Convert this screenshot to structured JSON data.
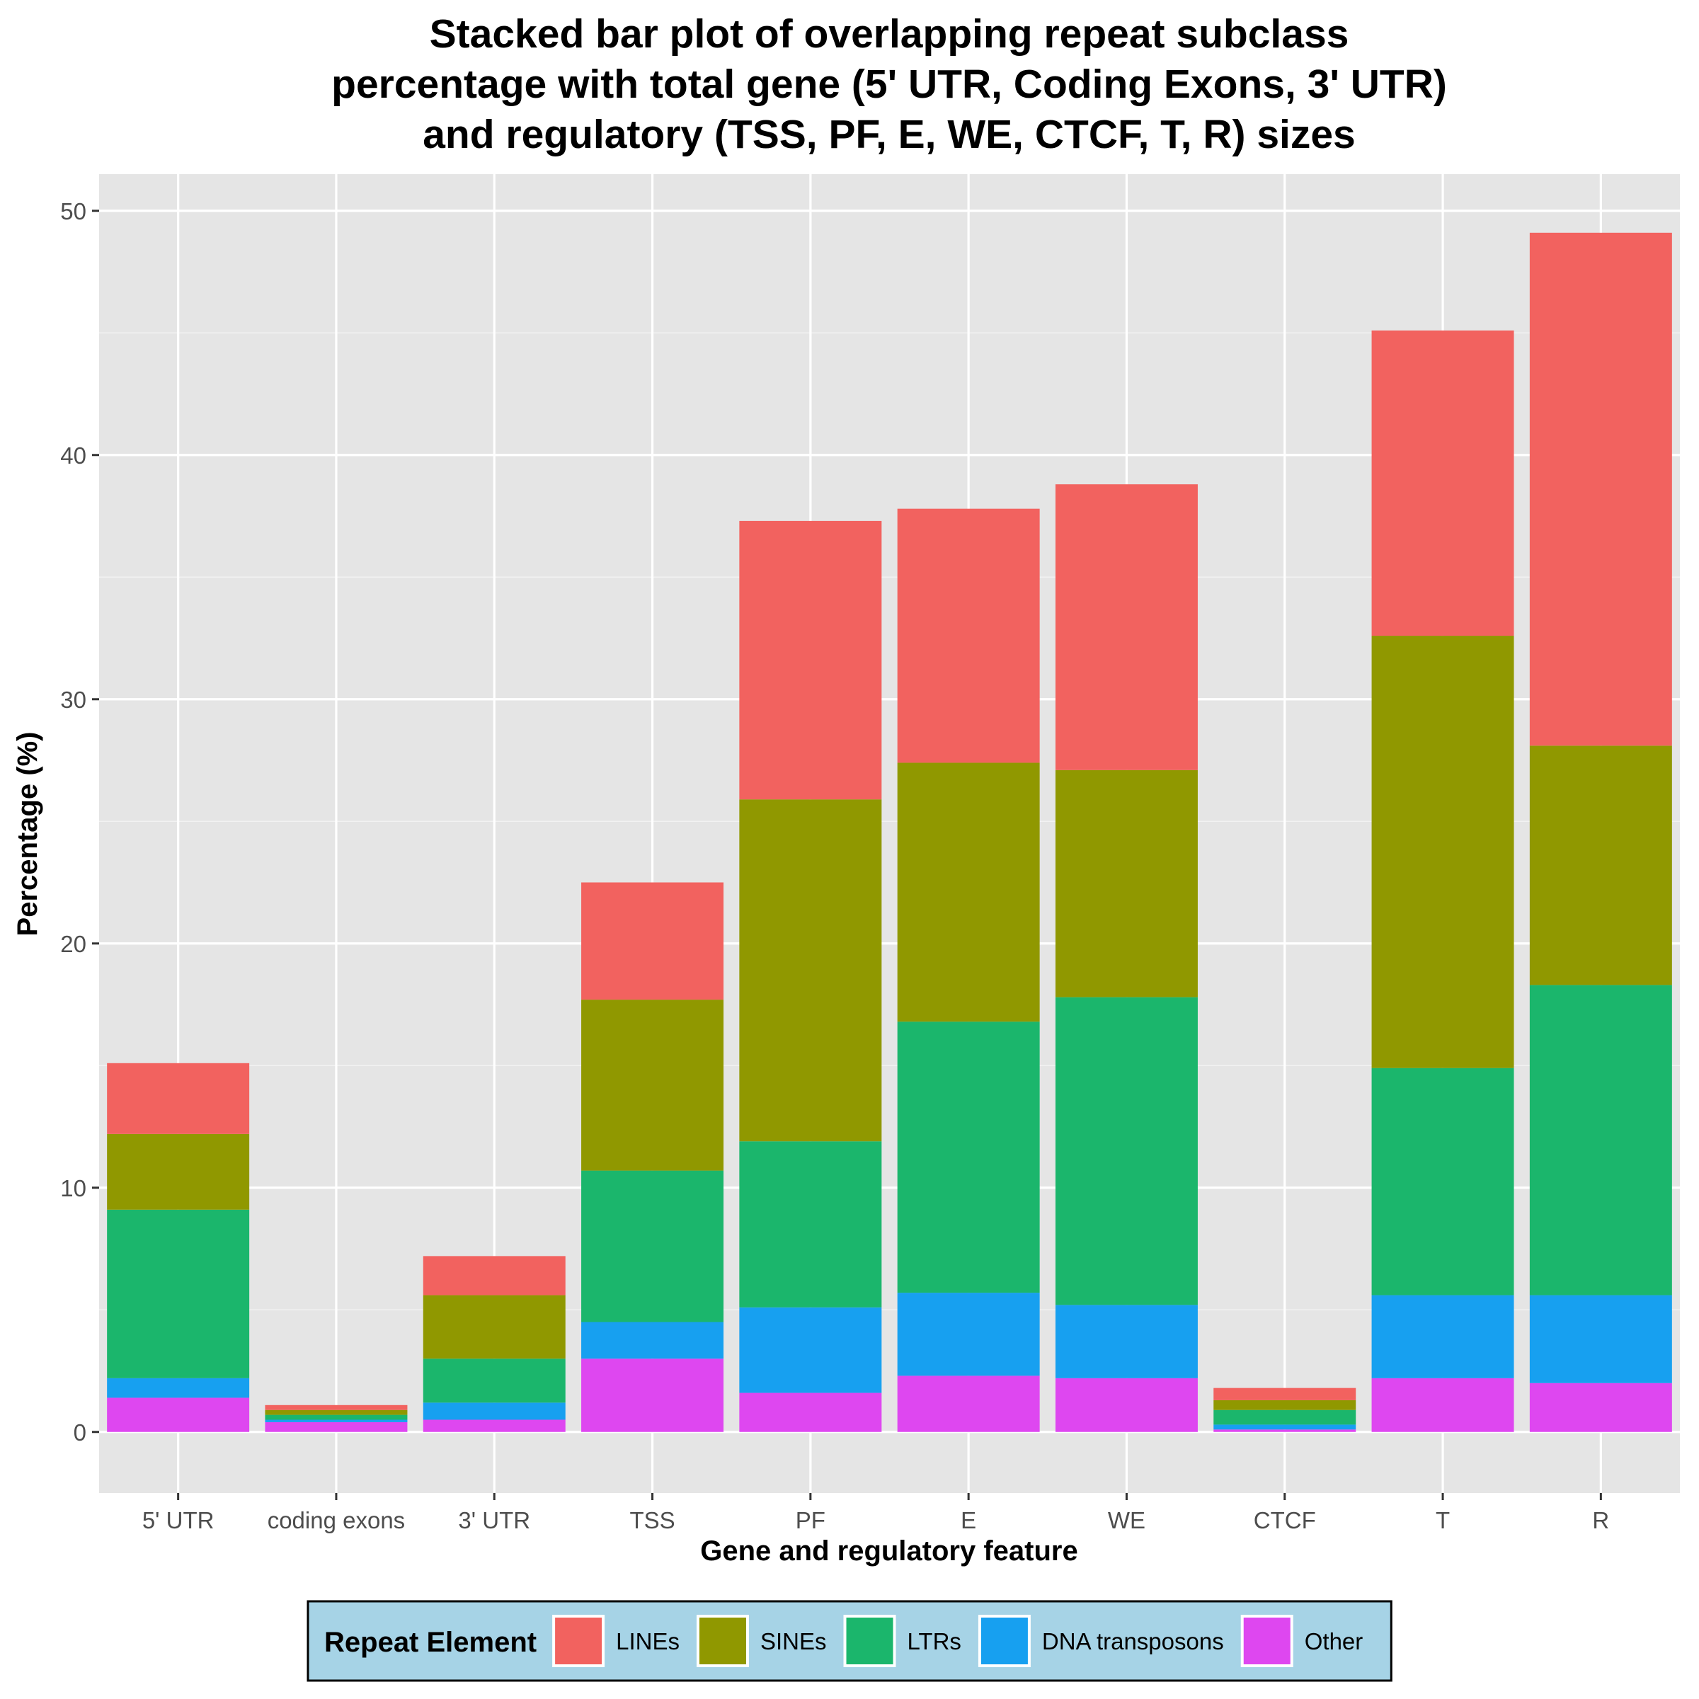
{
  "chart_data": {
    "type": "bar",
    "stacked": true,
    "title": [
      "Stacked bar plot of overlapping repeat subclass",
      "percentage with total gene (5' UTR, Coding Exons, 3' UTR)",
      "and regulatory (TSS, PF, E, WE, CTCF, T, R) sizes"
    ],
    "xlabel": "Gene and regulatory feature",
    "ylabel": "Percentage (%)",
    "ylim": [
      -2.5,
      51.5
    ],
    "yticks": [
      0,
      10,
      20,
      30,
      40,
      50
    ],
    "grid": true,
    "categories": [
      "5' UTR",
      "coding exons",
      "3' UTR",
      "TSS",
      "PF",
      "E",
      "WE",
      "CTCF",
      "T",
      "R"
    ],
    "legend": {
      "title": "Repeat Element",
      "position": "bottom",
      "background": "#a6d3e6"
    },
    "series": [
      {
        "name": "LINEs",
        "color": "#f2625f",
        "values": [
          2.9,
          0.2,
          1.6,
          4.8,
          11.4,
          10.4,
          11.7,
          0.5,
          12.5,
          21.0
        ]
      },
      {
        "name": "SINEs",
        "color": "#909800",
        "values": [
          3.1,
          0.2,
          2.6,
          7.0,
          14.0,
          10.6,
          9.3,
          0.4,
          17.7,
          9.8
        ]
      },
      {
        "name": "LTRs",
        "color": "#1bb66c",
        "values": [
          6.9,
          0.2,
          1.8,
          6.2,
          6.8,
          11.1,
          12.6,
          0.6,
          9.3,
          12.7
        ]
      },
      {
        "name": "DNA transposons",
        "color": "#17a0f0",
        "values": [
          0.8,
          0.1,
          0.7,
          1.5,
          3.5,
          3.4,
          3.0,
          0.2,
          3.4,
          3.6
        ]
      },
      {
        "name": "Other",
        "color": "#de47f0",
        "values": [
          1.4,
          0.4,
          0.5,
          3.0,
          1.6,
          2.3,
          2.2,
          0.1,
          2.2,
          2.0
        ]
      }
    ]
  }
}
